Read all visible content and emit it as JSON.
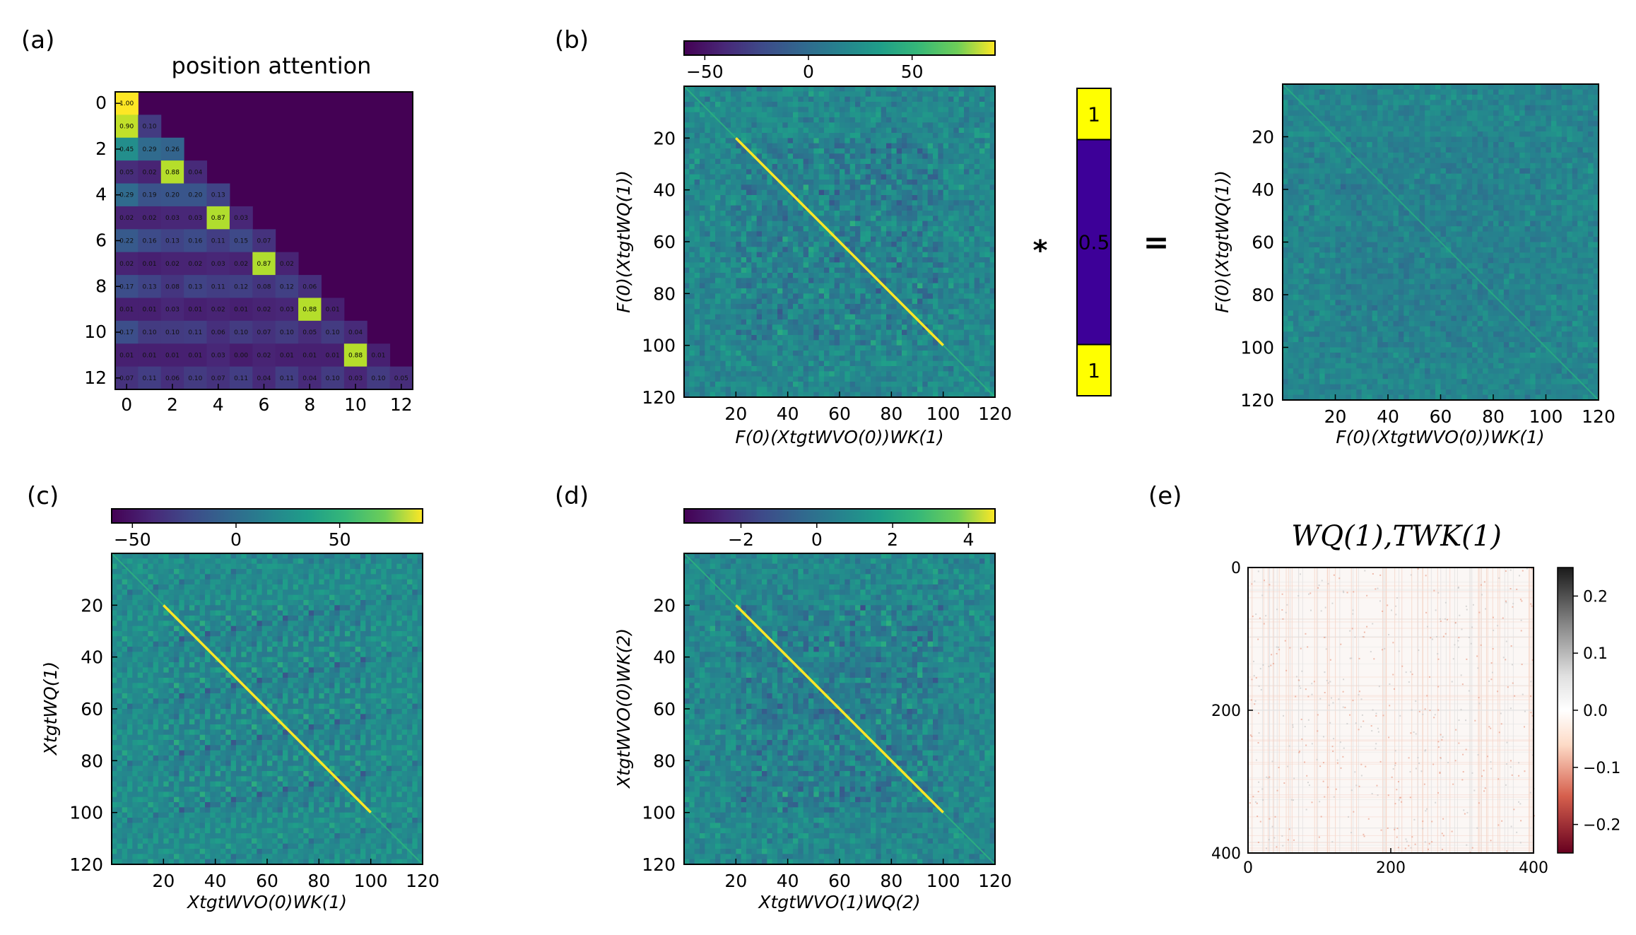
{
  "panel_letters": {
    "a": "(a)",
    "b": "(b)",
    "c": "(c)",
    "d": "(d)",
    "e": "(e)"
  },
  "operators": {
    "multiply": "*",
    "equals": "="
  },
  "chart_data": [
    {
      "id": "a",
      "type": "heatmap",
      "title": "position attention",
      "xticks": [
        "0",
        "2",
        "4",
        "6",
        "8",
        "10",
        "12"
      ],
      "yticks": [
        "0",
        "2",
        "4",
        "6",
        "8",
        "10",
        "12"
      ],
      "colormap": "viridis",
      "vmin": 0,
      "vmax": 1,
      "rows": [
        [
          "1.00"
        ],
        [
          "0.90",
          "0.10"
        ],
        [
          "0.45",
          "0.29",
          "0.26"
        ],
        [
          "0.05",
          "0.02",
          "0.88",
          "0.04"
        ],
        [
          "0.29",
          "0.19",
          "0.20",
          "0.20",
          "0.13"
        ],
        [
          "0.02",
          "0.02",
          "0.03",
          "0.03",
          "0.87",
          "0.03"
        ],
        [
          "0.22",
          "0.16",
          "0.13",
          "0.16",
          "0.11",
          "0.15",
          "0.07"
        ],
        [
          "0.02",
          "0.01",
          "0.02",
          "0.02",
          "0.03",
          "0.02",
          "0.87",
          "0.02"
        ],
        [
          "0.17",
          "0.13",
          "0.08",
          "0.13",
          "0.11",
          "0.12",
          "0.08",
          "0.12",
          "0.06"
        ],
        [
          "0.01",
          "0.01",
          "0.03",
          "0.01",
          "0.02",
          "0.01",
          "0.02",
          "0.03",
          "0.88",
          "0.01"
        ],
        [
          "0.17",
          "0.10",
          "0.10",
          "0.11",
          "0.06",
          "0.10",
          "0.07",
          "0.10",
          "0.05",
          "0.10",
          "0.04"
        ],
        [
          "0.01",
          "0.01",
          "0.01",
          "0.01",
          "0.03",
          "0.00",
          "0.02",
          "0.01",
          "0.01",
          "0.01",
          "0.88",
          "0.01"
        ],
        [
          "0.07",
          "0.11",
          "0.06",
          "0.10",
          "0.07",
          "0.11",
          "0.04",
          "0.11",
          "0.04",
          "0.10",
          "0.03",
          "0.10",
          "0.05"
        ]
      ]
    },
    {
      "id": "b",
      "type": "heatmap",
      "xlabel": "F(0)(XtgtWVO(0))WK(1)",
      "ylabel": "F(0)(XtgtWQ(1))",
      "xticks": [
        "20",
        "40",
        "60",
        "80",
        "100",
        "120"
      ],
      "yticks": [
        "20",
        "40",
        "60",
        "80",
        "100",
        "120"
      ],
      "grid_size": 120,
      "diagonal_range": [
        20,
        100
      ],
      "colormap": "viridis",
      "colorbar": {
        "ticks": [
          "−50",
          "0",
          "50"
        ],
        "range": [
          -60,
          90
        ]
      }
    },
    {
      "id": "b_mask",
      "type": "heatmap",
      "segments": [
        {
          "label": "1",
          "range": [
            0,
            20
          ],
          "value": 1
        },
        {
          "label": "0.5",
          "range": [
            20,
            100
          ],
          "value": 0.5
        },
        {
          "label": "1",
          "range": [
            100,
            120
          ],
          "value": 1
        }
      ]
    },
    {
      "id": "b_result",
      "type": "heatmap",
      "xlabel": "F(0)(XtgtWVO(0))WK(1)",
      "ylabel": "F(0)(XtgtWQ(1))",
      "xticks": [
        "20",
        "40",
        "60",
        "80",
        "100",
        "120"
      ],
      "yticks": [
        "20",
        "40",
        "60",
        "80",
        "100",
        "120"
      ],
      "grid_size": 120,
      "colormap": "viridis"
    },
    {
      "id": "c",
      "type": "heatmap",
      "xlabel": "XtgtWVO(0)WK(1)",
      "ylabel": "XtgtWQ(1)",
      "xticks": [
        "20",
        "40",
        "60",
        "80",
        "100",
        "120"
      ],
      "yticks": [
        "20",
        "40",
        "60",
        "80",
        "100",
        "120"
      ],
      "grid_size": 120,
      "diagonal_range": [
        20,
        100
      ],
      "colormap": "viridis",
      "colorbar": {
        "ticks": [
          "−50",
          "0",
          "50"
        ],
        "range": [
          -60,
          90
        ]
      }
    },
    {
      "id": "d",
      "type": "heatmap",
      "xlabel": "XtgtWVO(1)WQ(2)",
      "ylabel": "XtgtWVO(0)WK(2)",
      "xticks": [
        "20",
        "40",
        "60",
        "80",
        "100",
        "120"
      ],
      "yticks": [
        "20",
        "40",
        "60",
        "80",
        "100",
        "120"
      ],
      "grid_size": 120,
      "diagonal_range": [
        20,
        100
      ],
      "colormap": "viridis",
      "colorbar": {
        "ticks": [
          "−2",
          "0",
          "2",
          "4"
        ],
        "range": [
          -3.5,
          4.7
        ]
      }
    },
    {
      "id": "e",
      "type": "heatmap",
      "title": "WQ(1),TWK(1)",
      "xticks": [
        "0",
        "200",
        "400"
      ],
      "yticks": [
        "0",
        "200",
        "400"
      ],
      "grid_size": 400,
      "colormap": "RdGy",
      "colorbar": {
        "ticks": [
          "0.2",
          "0.1",
          "0.0",
          "−0.1",
          "−0.2"
        ],
        "range": [
          -0.25,
          0.25
        ]
      }
    }
  ]
}
